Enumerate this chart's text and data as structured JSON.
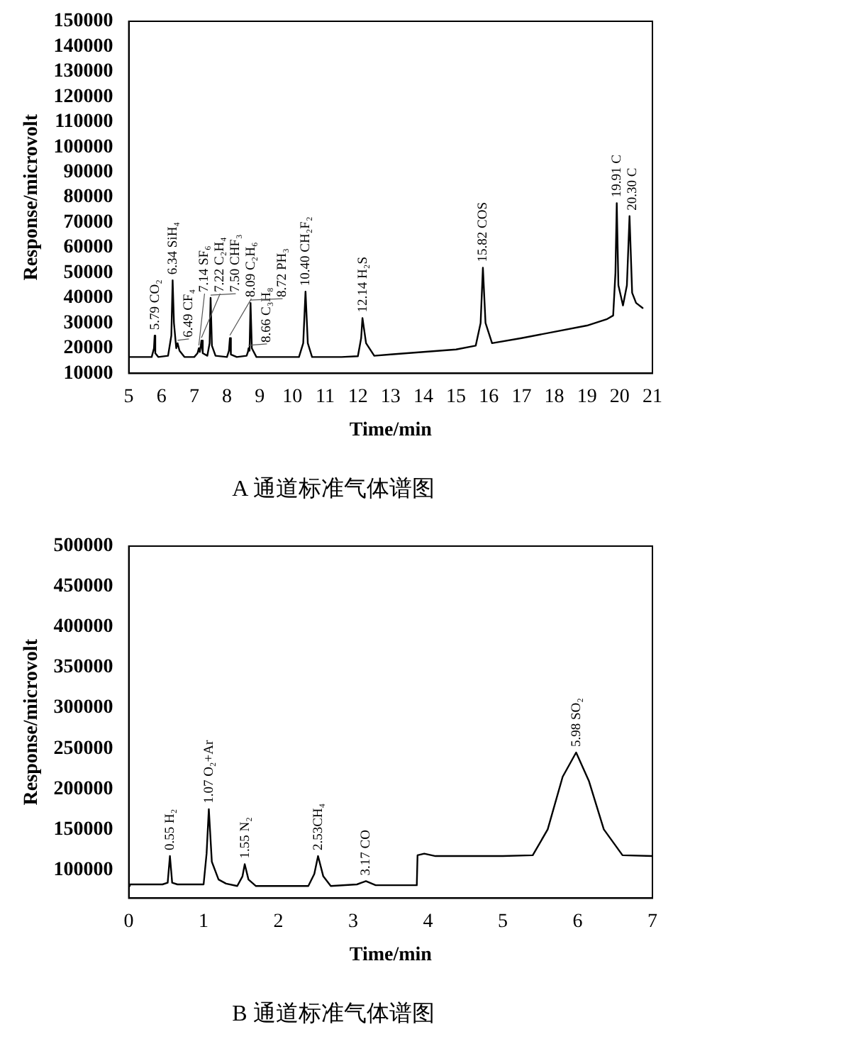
{
  "chart_data": [
    {
      "type": "line",
      "title": "A 通道标准气体谱图",
      "xlabel": "Time/min",
      "ylabel": "Response/microvolt",
      "x": [
        5,
        5.7,
        5.77,
        5.79,
        5.81,
        5.9,
        6.2,
        6.3,
        6.34,
        6.38,
        6.45,
        6.49,
        6.55,
        6.7,
        7.0,
        7.1,
        7.14,
        7.17,
        7.2,
        7.22,
        7.26,
        7.4,
        7.47,
        7.5,
        7.54,
        7.65,
        8.0,
        8.06,
        8.09,
        8.12,
        8.3,
        8.6,
        8.64,
        8.66,
        8.69,
        8.72,
        8.76,
        8.9,
        10.2,
        10.33,
        10.4,
        10.47,
        10.6,
        11.5,
        12.0,
        12.1,
        12.14,
        12.25,
        12.5,
        13,
        14,
        15,
        15.6,
        15.75,
        15.82,
        15.9,
        16.1,
        17,
        18,
        19,
        19.6,
        19.8,
        19.87,
        19.91,
        19.96,
        20.1,
        20.22,
        20.3,
        20.38,
        20.5,
        20.7
      ],
      "series": [
        {
          "color": "#000000",
          "values": [
            16500,
            16500,
            20000,
            25000,
            18000,
            16500,
            17000,
            25000,
            47000,
            30000,
            20000,
            22000,
            19000,
            16500,
            16500,
            18000,
            20000,
            18500,
            21000,
            23000,
            18000,
            17000,
            22000,
            40000,
            21000,
            17000,
            16500,
            19000,
            24000,
            17500,
            16500,
            17000,
            18500,
            20000,
            19000,
            38000,
            20000,
            16500,
            16500,
            22000,
            42500,
            22000,
            16500,
            16500,
            16800,
            24000,
            32000,
            22000,
            17000,
            17500,
            18500,
            19500,
            21000,
            30000,
            52000,
            30000,
            22000,
            24000,
            26500,
            29000,
            31500,
            33000,
            50000,
            77700,
            45000,
            37000,
            45000,
            72500,
            42000,
            38000,
            36000
          ]
        }
      ],
      "xlim": [
        5,
        21
      ],
      "xticks": [
        5,
        6,
        7,
        8,
        9,
        10,
        11,
        12,
        13,
        14,
        15,
        16,
        17,
        18,
        19,
        20,
        21
      ],
      "ylim": [
        10000,
        150000
      ],
      "yticks": [
        10000,
        20000,
        30000,
        40000,
        50000,
        60000,
        70000,
        80000,
        90000,
        100000,
        110000,
        120000,
        130000,
        140000,
        150000
      ],
      "annotations": [
        {
          "text": "5.79 CO₂",
          "x": 5.79,
          "y": 25000
        },
        {
          "text": "6.34 SiH₄",
          "x": 6.34,
          "y": 47000
        },
        {
          "text": "6.49 CF₄",
          "x": 6.49,
          "y": 22000
        },
        {
          "text": "7.14 SF₆",
          "x": 7.14,
          "y": 20000
        },
        {
          "text": "7.22 C₂H₄",
          "x": 7.22,
          "y": 23000
        },
        {
          "text": "7.50 CHF₃",
          "x": 7.5,
          "y": 40000
        },
        {
          "text": "8.09 C₂H₆",
          "x": 8.09,
          "y": 24000
        },
        {
          "text": "8.66 C₃H₈",
          "x": 8.66,
          "y": 20000
        },
        {
          "text": "8.72 PH₃",
          "x": 8.72,
          "y": 38000
        },
        {
          "text": "10.40 CH₂F₂",
          "x": 10.4,
          "y": 42500
        },
        {
          "text": "12.14 H₂S",
          "x": 12.14,
          "y": 32000
        },
        {
          "text": "15.82 COS",
          "x": 15.82,
          "y": 52000
        },
        {
          "text": "19.91 C",
          "x": 19.91,
          "y": 77700
        },
        {
          "text": "20.30 C",
          "x": 20.3,
          "y": 72500
        }
      ]
    },
    {
      "type": "line",
      "title": "B 通道标准气体谱图",
      "xlabel": "Time/min",
      "ylabel": "Response/microvolt",
      "x": [
        0,
        0.02,
        0.45,
        0.52,
        0.55,
        0.58,
        0.65,
        1.0,
        1.04,
        1.07,
        1.11,
        1.2,
        1.3,
        1.45,
        1.52,
        1.55,
        1.6,
        1.7,
        2.4,
        2.48,
        2.53,
        2.6,
        2.7,
        3.05,
        3.17,
        3.3,
        3.85,
        3.86,
        3.95,
        4.1,
        5.0,
        5.4,
        5.6,
        5.8,
        5.98,
        6.15,
        6.35,
        6.6,
        7
      ],
      "series": [
        {
          "color": "#000000",
          "values": [
            78000,
            82000,
            82000,
            84000,
            117000,
            84000,
            82000,
            82000,
            120000,
            175000,
            110000,
            88000,
            83000,
            80000,
            92000,
            107000,
            88000,
            80000,
            80000,
            95000,
            117000,
            92000,
            80000,
            82000,
            86000,
            81000,
            81000,
            118000,
            120000,
            117000,
            117000,
            118000,
            150000,
            215000,
            245000,
            210000,
            150000,
            118000,
            117000
          ]
        }
      ],
      "xlim": [
        0,
        7
      ],
      "xticks": [
        0,
        1,
        2,
        3,
        4,
        5,
        6,
        7
      ],
      "ylim": [
        65000,
        500000
      ],
      "yticks": [
        100000,
        150000,
        200000,
        250000,
        300000,
        350000,
        400000,
        450000,
        500000
      ],
      "annotations": [
        {
          "text": "0.55 H₂",
          "x": 0.55,
          "y": 117000
        },
        {
          "text": "1.07 O₂+Ar",
          "x": 1.07,
          "y": 175000
        },
        {
          "text": "1.55 N₂",
          "x": 1.55,
          "y": 107000
        },
        {
          "text": "2.53CH₄",
          "x": 2.53,
          "y": 117000
        },
        {
          "text": "3.17 CO",
          "x": 3.17,
          "y": 86000
        },
        {
          "text": "5.98 SO₂",
          "x": 5.98,
          "y": 245000
        }
      ]
    }
  ]
}
